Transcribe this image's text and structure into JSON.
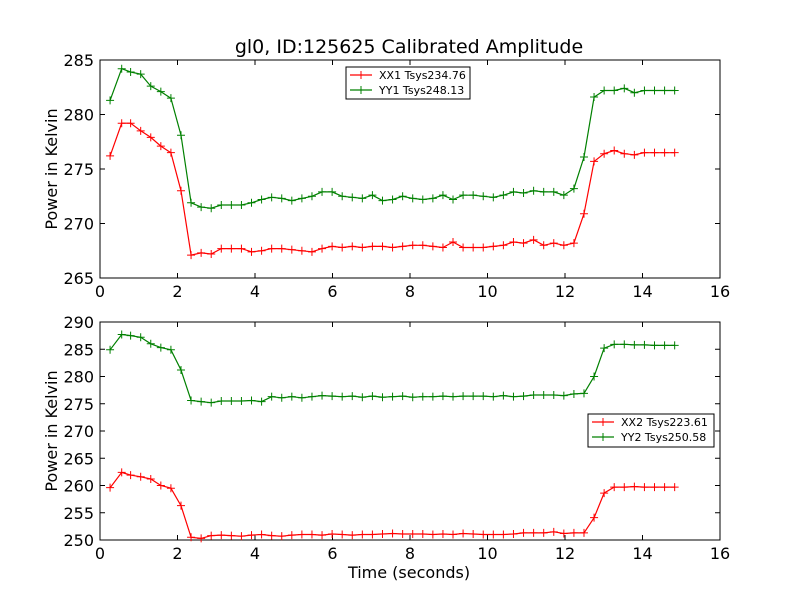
{
  "figure": {
    "title": "gl0, ID:125625 Calibrated Amplitude",
    "xlabel": "Time (seconds)"
  },
  "chart_data": [
    {
      "type": "line",
      "title": "gl0, ID:125625 Calibrated Amplitude",
      "xlabel": "",
      "ylabel": "Power in Kelvin",
      "xlim": [
        0,
        16
      ],
      "ylim": [
        265,
        285
      ],
      "xticks": [
        "0",
        "2",
        "4",
        "6",
        "8",
        "10",
        "12",
        "14",
        "16"
      ],
      "yticks": [
        "265",
        "270",
        "275",
        "280",
        "285"
      ],
      "grid": false,
      "legend_position": "top-center",
      "series": [
        {
          "name": "XX1 Tsys234.76",
          "color": "#ff0000",
          "marker": "plus",
          "x": [
            0.26,
            0.56,
            0.79,
            1.05,
            1.31,
            1.57,
            1.83,
            2.09,
            2.35,
            2.61,
            2.87,
            3.13,
            3.39,
            3.65,
            3.91,
            4.17,
            4.43,
            4.69,
            4.95,
            5.21,
            5.47,
            5.73,
            5.99,
            6.25,
            6.51,
            6.77,
            7.03,
            7.29,
            7.55,
            7.81,
            8.07,
            8.33,
            8.59,
            8.85,
            9.11,
            9.37,
            9.63,
            9.89,
            10.15,
            10.41,
            10.67,
            10.93,
            11.19,
            11.45,
            11.71,
            11.97,
            12.23,
            12.49,
            12.75,
            13.01,
            13.27,
            13.53,
            13.79,
            14.05,
            14.31,
            14.57,
            14.83
          ],
          "y": [
            276.2,
            279.2,
            279.2,
            278.5,
            277.9,
            277.1,
            276.5,
            273.0,
            267.1,
            267.3,
            267.2,
            267.7,
            267.7,
            267.7,
            267.4,
            267.5,
            267.7,
            267.7,
            267.6,
            267.5,
            267.4,
            267.7,
            267.9,
            267.8,
            267.9,
            267.8,
            267.9,
            267.9,
            267.8,
            267.9,
            268.0,
            268.0,
            267.9,
            267.8,
            268.3,
            267.8,
            267.8,
            267.8,
            267.9,
            268.0,
            268.3,
            268.2,
            268.5,
            268.0,
            268.2,
            268.0,
            268.2,
            270.9,
            275.7,
            276.4,
            276.7,
            276.4,
            276.3,
            276.5,
            276.5,
            276.5,
            276.5
          ]
        },
        {
          "name": "YY1 Tsys248.13",
          "color": "#008000",
          "marker": "plus",
          "x": [
            0.26,
            0.56,
            0.79,
            1.05,
            1.31,
            1.57,
            1.83,
            2.09,
            2.35,
            2.61,
            2.87,
            3.13,
            3.39,
            3.65,
            3.91,
            4.17,
            4.43,
            4.69,
            4.95,
            5.21,
            5.47,
            5.73,
            5.99,
            6.25,
            6.51,
            6.77,
            7.03,
            7.29,
            7.55,
            7.81,
            8.07,
            8.33,
            8.59,
            8.85,
            9.11,
            9.37,
            9.63,
            9.89,
            10.15,
            10.41,
            10.67,
            10.93,
            11.19,
            11.45,
            11.71,
            11.97,
            12.23,
            12.49,
            12.75,
            13.01,
            13.27,
            13.53,
            13.79,
            14.05,
            14.31,
            14.57,
            14.83
          ],
          "y": [
            281.3,
            284.2,
            283.9,
            283.7,
            282.6,
            282.1,
            281.5,
            278.1,
            271.9,
            271.5,
            271.4,
            271.7,
            271.7,
            271.7,
            271.9,
            272.2,
            272.4,
            272.3,
            272.1,
            272.3,
            272.5,
            272.9,
            272.9,
            272.5,
            272.4,
            272.3,
            272.6,
            272.1,
            272.2,
            272.5,
            272.3,
            272.2,
            272.3,
            272.6,
            272.2,
            272.6,
            272.6,
            272.5,
            272.4,
            272.6,
            272.9,
            272.8,
            273.0,
            272.9,
            272.9,
            272.6,
            273.2,
            276.1,
            281.6,
            282.2,
            282.2,
            282.4,
            282.0,
            282.2,
            282.2,
            282.2,
            282.2
          ]
        }
      ]
    },
    {
      "type": "line",
      "title": "",
      "xlabel": "Time (seconds)",
      "ylabel": "Power in Kelvin",
      "xlim": [
        0,
        16
      ],
      "ylim": [
        250,
        290
      ],
      "xticks": [
        "0",
        "2",
        "4",
        "6",
        "8",
        "10",
        "12",
        "14",
        "16"
      ],
      "yticks": [
        "250",
        "255",
        "260",
        "265",
        "270",
        "275",
        "280",
        "285",
        "290"
      ],
      "grid": false,
      "legend_position": "center-right",
      "series": [
        {
          "name": "XX2 Tsys223.61",
          "color": "#ff0000",
          "marker": "plus",
          "x": [
            0.26,
            0.56,
            0.79,
            1.05,
            1.31,
            1.57,
            1.83,
            2.09,
            2.35,
            2.61,
            2.87,
            3.13,
            3.39,
            3.65,
            3.91,
            4.17,
            4.43,
            4.69,
            4.95,
            5.21,
            5.47,
            5.73,
            5.99,
            6.25,
            6.51,
            6.77,
            7.03,
            7.29,
            7.55,
            7.81,
            8.07,
            8.33,
            8.59,
            8.85,
            9.11,
            9.37,
            9.63,
            9.89,
            10.15,
            10.41,
            10.67,
            10.93,
            11.19,
            11.45,
            11.71,
            11.97,
            12.23,
            12.49,
            12.75,
            13.01,
            13.27,
            13.53,
            13.79,
            14.05,
            14.31,
            14.57,
            14.83
          ],
          "y": [
            259.6,
            262.4,
            261.9,
            261.6,
            261.2,
            260.0,
            259.5,
            256.3,
            250.5,
            250.3,
            250.8,
            250.9,
            250.8,
            250.7,
            250.9,
            251.0,
            250.8,
            250.7,
            250.9,
            251.0,
            251.0,
            250.9,
            251.1,
            251.0,
            250.9,
            251.0,
            251.0,
            251.1,
            251.2,
            251.1,
            251.1,
            251.1,
            251.0,
            251.1,
            251.0,
            251.2,
            251.1,
            251.0,
            251.0,
            251.0,
            251.1,
            251.3,
            251.3,
            251.3,
            251.5,
            251.2,
            251.3,
            251.3,
            254.1,
            258.6,
            259.7,
            259.7,
            259.8,
            259.7,
            259.7,
            259.7,
            259.7
          ]
        },
        {
          "name": "YY2 Tsys250.58",
          "color": "#008000",
          "marker": "plus",
          "x": [
            0.26,
            0.56,
            0.79,
            1.05,
            1.31,
            1.57,
            1.83,
            2.09,
            2.35,
            2.61,
            2.87,
            3.13,
            3.39,
            3.65,
            3.91,
            4.17,
            4.43,
            4.69,
            4.95,
            5.21,
            5.47,
            5.73,
            5.99,
            6.25,
            6.51,
            6.77,
            7.03,
            7.29,
            7.55,
            7.81,
            8.07,
            8.33,
            8.59,
            8.85,
            9.11,
            9.37,
            9.63,
            9.89,
            10.15,
            10.41,
            10.67,
            10.93,
            11.19,
            11.45,
            11.71,
            11.97,
            12.23,
            12.49,
            12.75,
            13.01,
            13.27,
            13.53,
            13.79,
            14.05,
            14.31,
            14.57,
            14.83
          ],
          "y": [
            284.9,
            287.7,
            287.5,
            287.2,
            286.0,
            285.3,
            284.9,
            281.2,
            275.6,
            275.4,
            275.2,
            275.5,
            275.5,
            275.5,
            275.6,
            275.4,
            276.3,
            276.1,
            276.3,
            276.1,
            276.3,
            276.5,
            276.4,
            276.3,
            276.4,
            276.2,
            276.4,
            276.2,
            276.3,
            276.4,
            276.2,
            276.3,
            276.3,
            276.4,
            276.3,
            276.4,
            276.4,
            276.4,
            276.3,
            276.5,
            276.3,
            276.4,
            276.6,
            276.6,
            276.6,
            276.5,
            276.8,
            276.9,
            280.0,
            285.2,
            285.9,
            285.9,
            285.8,
            285.8,
            285.7,
            285.7,
            285.7
          ]
        }
      ]
    }
  ]
}
